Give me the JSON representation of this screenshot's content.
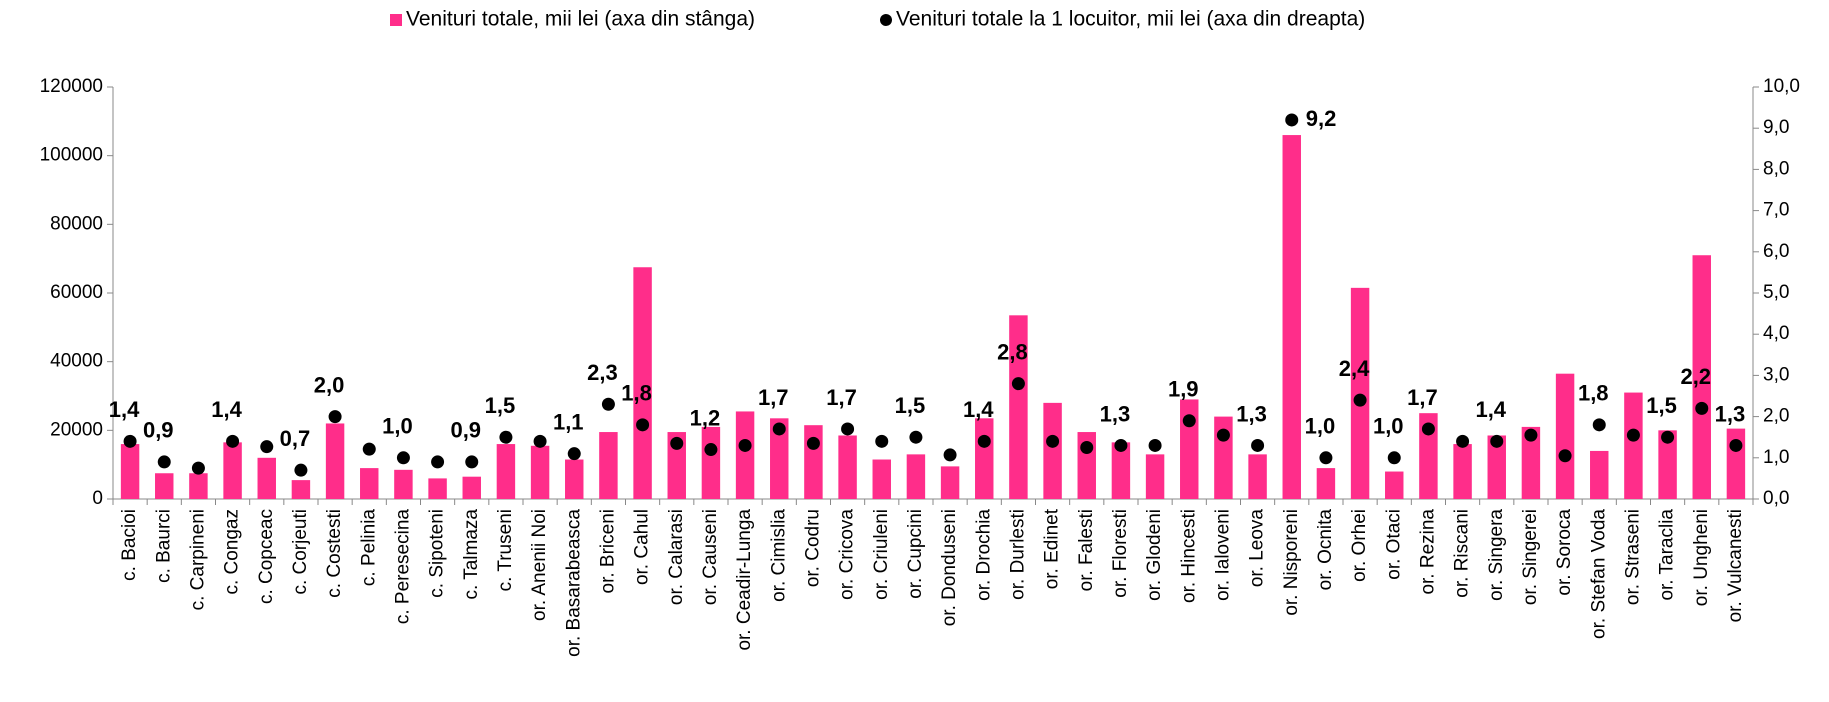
{
  "chart_data": {
    "type": "bar",
    "categories": [
      "c. Bacioi",
      "c. Baurci",
      "c. Carpineni",
      "c. Congaz",
      "c. Copceac",
      "c. Corjeuti",
      "c. Costesti",
      "c. Pelinia",
      "c. Peresecina",
      "c. Sipoteni",
      "c. Talmaza",
      "c. Truseni",
      "or. Anenii Noi",
      "or. Basarabeasca",
      "or. Briceni",
      "or. Cahul",
      "or. Calarasi",
      "or. Causeni",
      "or. Ceadir-Lunga",
      "or. Cimislia",
      "or. Codru",
      "or. Cricova",
      "or. Criuleni",
      "or. Cupcini",
      "or. Donduseni",
      "or. Drochia",
      "or. Durlesti",
      "or. Edinet",
      "or. Falesti",
      "or. Floresti",
      "or. Glodeni",
      "or. Hincesti",
      "or. Ialoveni",
      "or. Leova",
      "or. Nisporeni",
      "or. Ocnita",
      "or. Orhei",
      "or. Otaci",
      "or. Rezina",
      "or. Riscani",
      "or. Singera",
      "or. Singerei",
      "or. Soroca",
      "or. Stefan Voda",
      "or. Straseni",
      "or. Taraclia",
      "or. Ungheni",
      "or. Vulcanesti"
    ],
    "series": [
      {
        "name": "Venituri totale, mii lei (axa din stânga)",
        "color": "#ff2d8a",
        "axis": "y",
        "values": [
          16000,
          7500,
          7500,
          16500,
          12000,
          5500,
          22000,
          9000,
          8500,
          6000,
          6500,
          16000,
          15500,
          11500,
          19500,
          67500,
          19500,
          21000,
          25500,
          23500,
          21500,
          18500,
          11500,
          13000,
          9500,
          23500,
          53500,
          28000,
          19500,
          16500,
          13000,
          29000,
          24000,
          13000,
          106000,
          9000,
          61500,
          8000,
          25000,
          16000,
          18500,
          21000,
          36500,
          14000,
          31000,
          20000,
          71000,
          20500
        ]
      },
      {
        "name": "Venituri totale la 1 locuitor, mii lei (axa din dreapta)",
        "color": "#000000",
        "axis": "y2",
        "values": [
          1.4,
          0.9,
          0.75,
          1.4,
          1.27,
          0.7,
          2.0,
          1.21,
          1.0,
          0.9,
          0.9,
          1.5,
          1.4,
          1.1,
          2.3,
          1.8,
          1.35,
          1.2,
          1.3,
          1.7,
          1.35,
          1.7,
          1.4,
          1.5,
          1.07,
          1.4,
          2.8,
          1.4,
          1.25,
          1.3,
          1.3,
          1.9,
          1.55,
          1.3,
          9.2,
          1.0,
          2.4,
          1.0,
          1.7,
          1.4,
          1.4,
          1.55,
          1.05,
          1.8,
          1.55,
          1.5,
          2.2,
          1.3
        ],
        "value_labels": [
          "1,4",
          "0,9",
          null,
          "1,4",
          null,
          "0,7",
          "2,0",
          null,
          "1,0",
          null,
          "0,9",
          "1,5",
          null,
          "1,1",
          "2,3",
          "1,8",
          null,
          "1,2",
          null,
          "1,7",
          null,
          "1,7",
          null,
          "1,5",
          null,
          "1,4",
          "2,8",
          null,
          null,
          "1,3",
          null,
          "1,9",
          null,
          "1,3",
          "9,2",
          "1,0",
          "2,4",
          "1,0",
          "1,7",
          null,
          "1,4",
          null,
          null,
          "1,8",
          null,
          "1,5",
          "2,2",
          "1,3"
        ]
      }
    ],
    "ylim": [
      0,
      120000
    ],
    "yticks": [
      0,
      20000,
      40000,
      60000,
      80000,
      100000,
      120000
    ],
    "y2lim": [
      0,
      10
    ],
    "y2ticks": [
      {
        "value": 0,
        "label": "0,0"
      },
      {
        "value": 1,
        "label": "1,0"
      },
      {
        "value": 2,
        "label": "2,0"
      },
      {
        "value": 3,
        "label": "3,0"
      },
      {
        "value": 4,
        "label": "4,0"
      },
      {
        "value": 5,
        "label": "5,0"
      },
      {
        "value": 6,
        "label": "6,0"
      },
      {
        "value": 7,
        "label": "7,0"
      },
      {
        "value": 8,
        "label": "8,0"
      },
      {
        "value": 9,
        "label": "9,0"
      },
      {
        "value": 10,
        "label": "10,0"
      }
    ],
    "legend": "top",
    "grid": false
  }
}
